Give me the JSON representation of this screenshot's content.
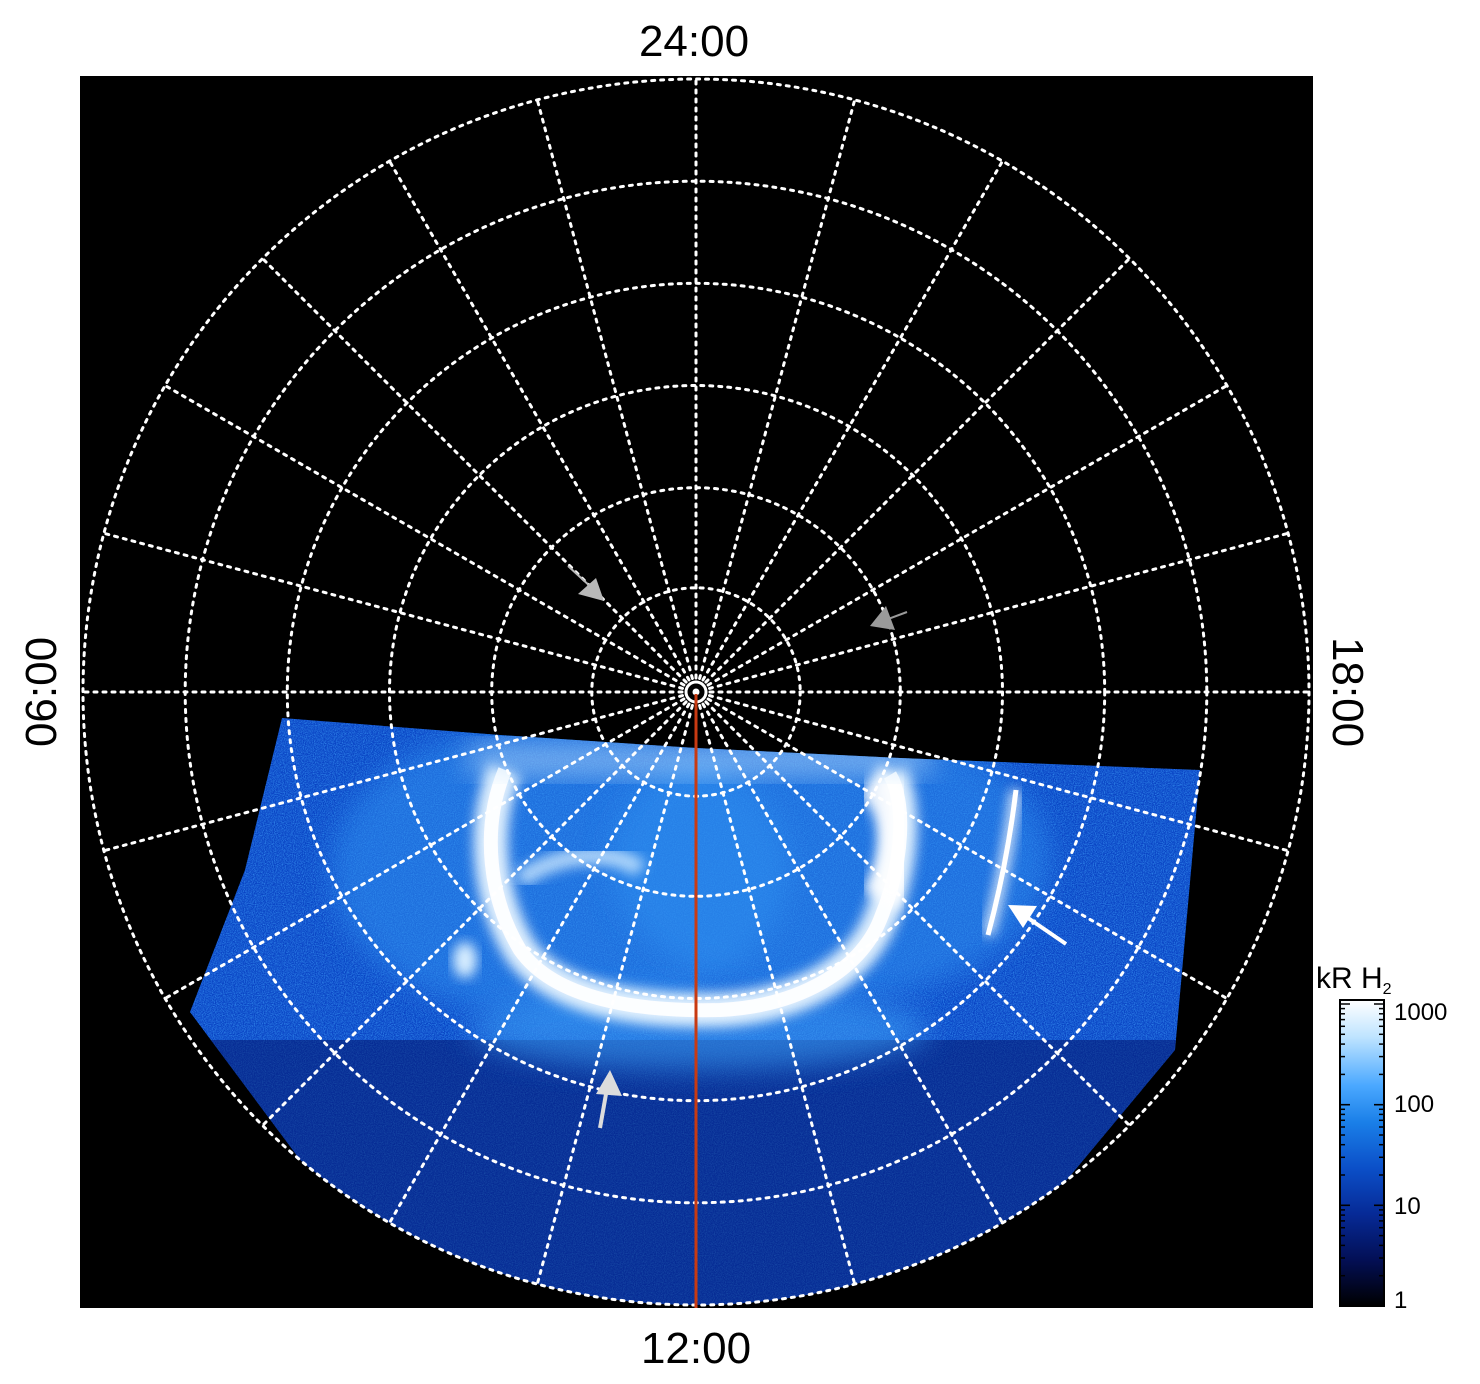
{
  "figure": {
    "background_color": "#000000",
    "grid_color": "#ffffff",
    "meridian_line_color": "#c83a12",
    "local_time_labels": {
      "top": "24:00",
      "bottom": "12:00",
      "left": "06:00",
      "right": "18:00"
    },
    "meridians_count": 24,
    "latitude_circles_count": 6,
    "arrows": [
      {
        "name": "gray-arrow-upper-left",
        "color": "#b8b8b8"
      },
      {
        "name": "gray-arrow-upper-right",
        "color": "#9a9a9a"
      },
      {
        "name": "white-arrow-right",
        "color": "#ffffff"
      },
      {
        "name": "lightgray-arrow-lower-left",
        "color": "#dcdcdc"
      }
    ]
  },
  "colorbar": {
    "title": "kR H",
    "title_subscript": "2",
    "ticks": [
      "1000",
      "100",
      "10",
      "1"
    ],
    "scale": "log",
    "colors": [
      "#ffffff",
      "#8fd0ff",
      "#1d8cf0",
      "#0a3fb8",
      "#04137a",
      "#000000"
    ]
  }
}
